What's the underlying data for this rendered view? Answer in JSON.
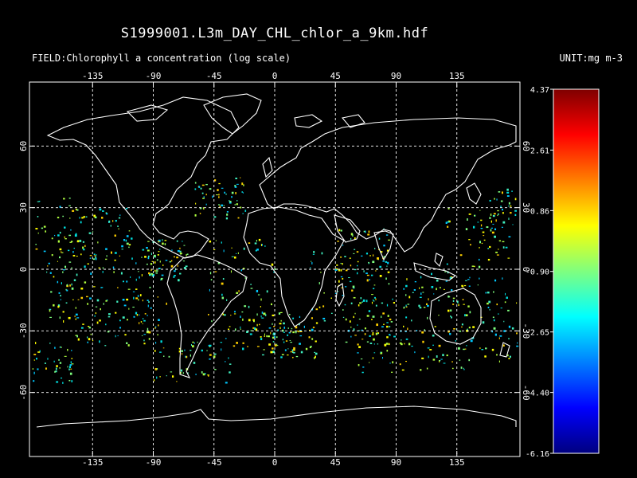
{
  "title": "S1999001.L3m_DAY_CHL_chlor_a_9km.hdf",
  "field_label": "FIELD:Chlorophyll a concentration (log scale)",
  "unit_label": "UNIT:mg m-3",
  "lon_ticks": [
    "-135",
    "-90",
    "-45",
    "0",
    "45",
    "90",
    "135"
  ],
  "lon_values": [
    -135,
    -90,
    -45,
    0,
    45,
    90,
    135
  ],
  "lat_ticks": [
    "60",
    "30",
    "0",
    "-30",
    "-60"
  ],
  "lat_values": [
    60,
    30,
    0,
    -30,
    -60
  ],
  "colorbar": {
    "min": -6.16,
    "max": 4.37,
    "tick_labels": [
      "4.37",
      "2.61",
      "0.86",
      "-0.90",
      "-2.65",
      "-4.40",
      "-6.16"
    ],
    "tick_values": [
      4.37,
      2.61,
      0.86,
      -0.9,
      -2.65,
      -4.4,
      -6.16
    ],
    "colors": [
      "#00007f",
      "#0000ff",
      "#007fff",
      "#00ffff",
      "#7fff7f",
      "#ffff00",
      "#ff7f00",
      "#ff0000",
      "#7f0000"
    ]
  },
  "map": {
    "projection": "equirectangular",
    "lon_range": [
      -180,
      180
    ],
    "lat_range": [
      -90,
      90
    ],
    "background": "#000000",
    "coastline_color": "#ffffff",
    "grid": "dashed"
  }
}
